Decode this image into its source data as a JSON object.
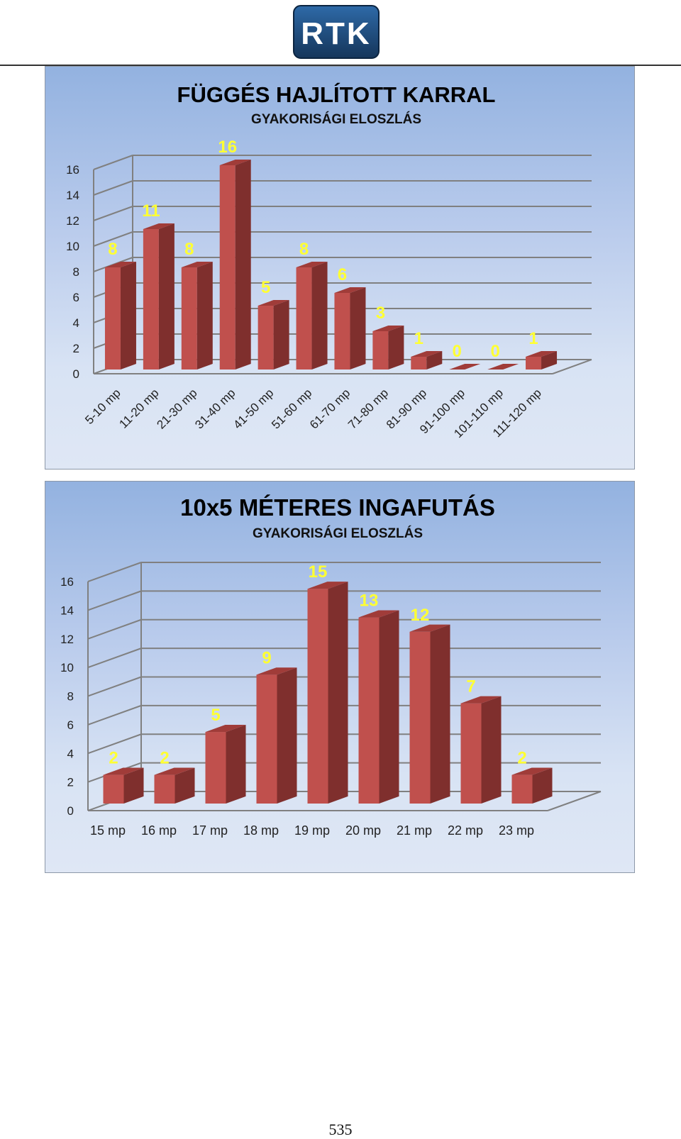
{
  "header": {
    "logo_text": "RTK"
  },
  "colors": {
    "bar_front": "#c0504d",
    "bar_side": "#7f2f2d",
    "bar_top": "#a03c39",
    "data_label": "#ffff33",
    "grid": "#808080",
    "logo_bg": "#1f4e79"
  },
  "chart_data": [
    {
      "type": "bar",
      "title": "FÜGGÉS HAJLÍTOTT KARRAL",
      "subtitle": "GYAKORISÁGI ELOSZLÁS",
      "categories": [
        "5-10 mp",
        "11-20 mp",
        "21-30 mp",
        "31-40 mp",
        "41-50 mp",
        "51-60 mp",
        "61-70 mp",
        "71-80 mp",
        "81-90 mp",
        "91-100 mp",
        "101-110 mp",
        "111-120 mp"
      ],
      "values": [
        8,
        11,
        8,
        16,
        5,
        8,
        6,
        3,
        1,
        0,
        0,
        1
      ],
      "ylim": [
        0,
        16
      ],
      "yticks": [
        0,
        2,
        4,
        6,
        8,
        10,
        12,
        14,
        16
      ],
      "grid": true,
      "style": "3d-column",
      "x_label_rotation": "rotated"
    },
    {
      "type": "bar",
      "title": "10x5 MÉTERES INGAFUTÁS",
      "subtitle": "GYAKORISÁGI ELOSZLÁS",
      "categories": [
        "15 mp",
        "16 mp",
        "17 mp",
        "18 mp",
        "19 mp",
        "20 mp",
        "21 mp",
        "22 mp",
        "23 mp"
      ],
      "values": [
        2,
        2,
        5,
        9,
        15,
        13,
        12,
        7,
        2
      ],
      "ylim": [
        0,
        16
      ],
      "yticks": [
        0,
        2,
        4,
        6,
        8,
        10,
        12,
        14,
        16
      ],
      "grid": true,
      "style": "3d-column",
      "x_label_rotation": "horizontal"
    }
  ],
  "footer": {
    "page_number": "535"
  }
}
